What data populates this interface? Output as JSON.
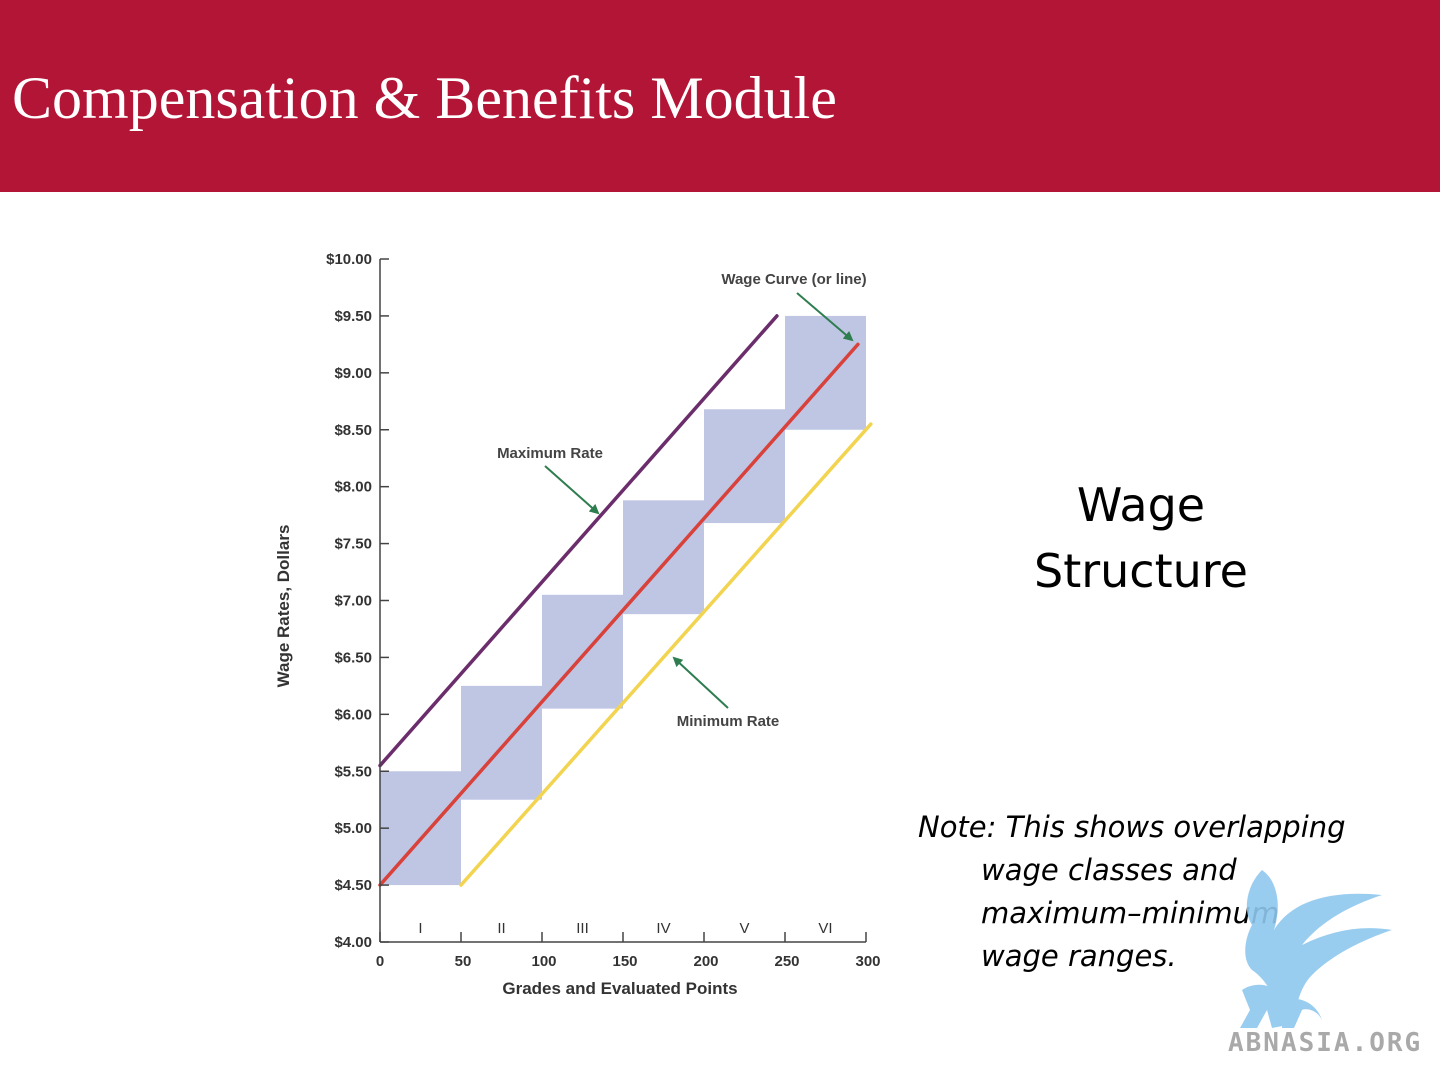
{
  "header": {
    "title": "Compensation & Benefits Module"
  },
  "side_title": {
    "line1": "Wage",
    "line2": "Structure"
  },
  "note": {
    "line1": "Note: This shows overlapping",
    "line2": "wage classes and",
    "line3": "maximum–minimum",
    "line4": "wage ranges."
  },
  "logo": {
    "text": "ABNASIA.ORG"
  },
  "colors": {
    "header": "#b31536",
    "band": "#bec6e4",
    "max_line": "#6b2d6b",
    "curve": "#d9413b",
    "min_line": "#f2d451",
    "arrow": "#2e7d4f"
  },
  "chart_data": {
    "type": "area",
    "xlabel": "Grades and Evaluated Points",
    "ylabel": "Wage Rates, Dollars",
    "xlim": [
      0,
      300
    ],
    "ylim": [
      4,
      10
    ],
    "x_ticks": [
      0,
      50,
      100,
      150,
      200,
      250,
      300
    ],
    "y_ticks": [
      4.0,
      4.5,
      5.0,
      5.5,
      6.0,
      6.5,
      7.0,
      7.5,
      8.0,
      8.5,
      9.0,
      9.5,
      10.0
    ],
    "y_tick_labels": [
      "$4.00",
      "$4.50",
      "$5.00",
      "$5.50",
      "$6.00",
      "$6.50",
      "$7.00",
      "$7.50",
      "$8.00",
      "$8.50",
      "$9.00",
      "$9.50",
      "$10.00"
    ],
    "grid": false,
    "grades": [
      {
        "label": "I",
        "x0": 0,
        "x1": 50,
        "min": 4.5,
        "max": 5.5
      },
      {
        "label": "II",
        "x0": 50,
        "x1": 100,
        "min": 5.25,
        "max": 6.25
      },
      {
        "label": "III",
        "x0": 100,
        "x1": 150,
        "min": 6.05,
        "max": 7.05
      },
      {
        "label": "IV",
        "x0": 150,
        "x1": 200,
        "min": 6.88,
        "max": 7.88
      },
      {
        "label": "V",
        "x0": 200,
        "x1": 250,
        "min": 7.68,
        "max": 8.68
      },
      {
        "label": "VI",
        "x0": 250,
        "x1": 300,
        "min": 8.5,
        "max": 9.5
      }
    ],
    "series": [
      {
        "name": "Maximum Rate",
        "x": [
          0,
          245
        ],
        "y": [
          5.55,
          9.5
        ]
      },
      {
        "name": "Wage Curve (or line)",
        "x": [
          0,
          295
        ],
        "y": [
          4.5,
          9.25
        ]
      },
      {
        "name": "Minimum Rate",
        "x": [
          50,
          303
        ],
        "y": [
          4.5,
          8.55
        ]
      }
    ],
    "annotations": [
      {
        "text": "Wage Curve (or line)",
        "points_to": "Wage Curve (or line)"
      },
      {
        "text": "Maximum Rate",
        "points_to": "Maximum Rate"
      },
      {
        "text": "Minimum Rate",
        "points_to": "Minimum Rate"
      }
    ]
  }
}
